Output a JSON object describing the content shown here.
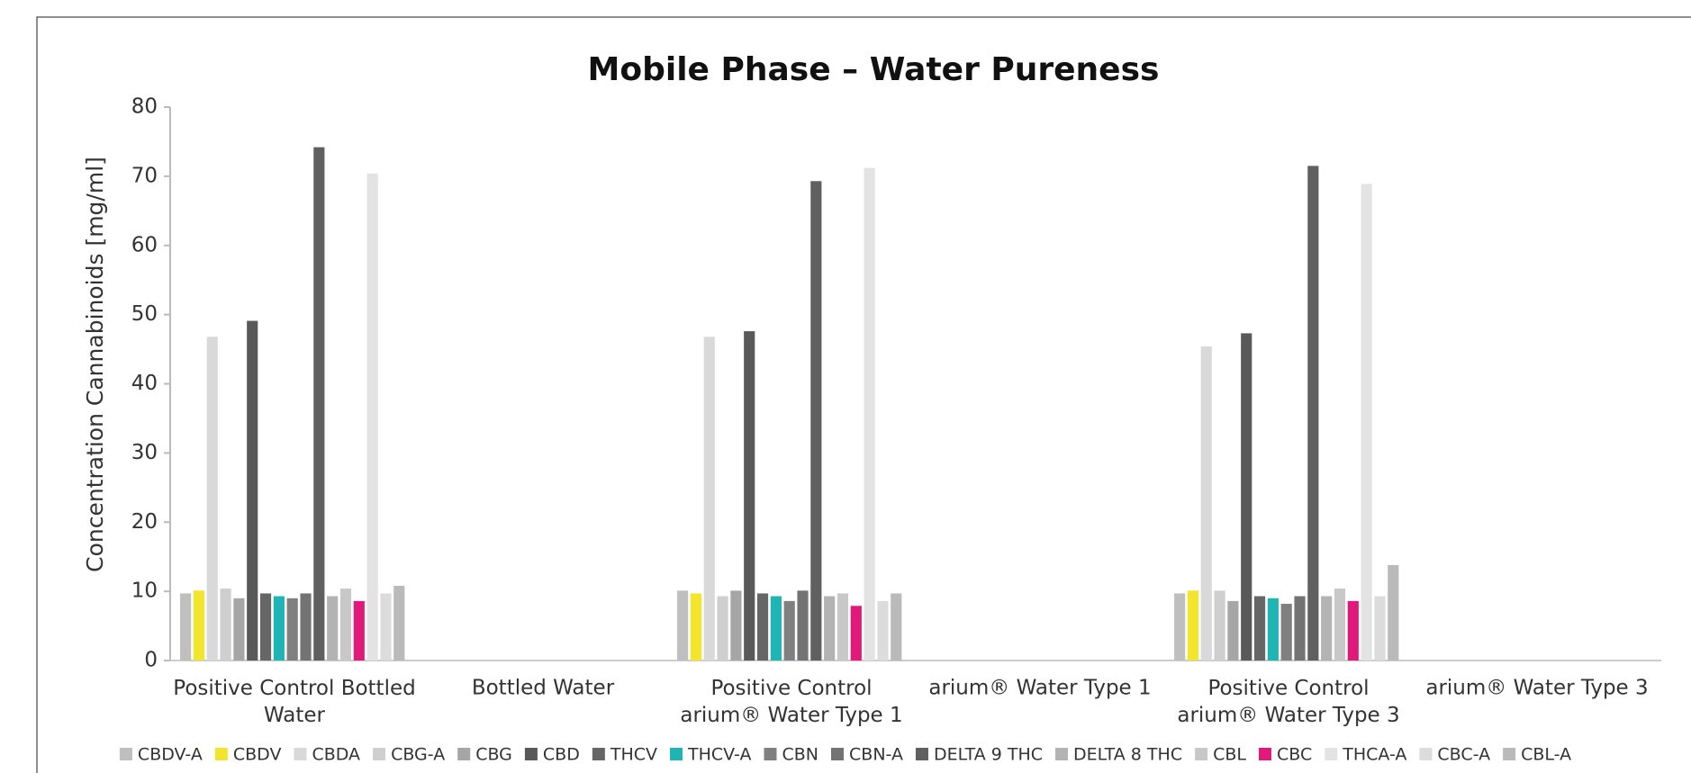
{
  "chart_data": {
    "type": "bar",
    "title": "Mobile Phase – Water Pureness",
    "ylabel": "Concentration Cannabinoids [mg/ml]",
    "categories": [
      "Positive Control Bottled Water",
      "Bottled Water",
      "Positive Control arium® Water Type 1",
      "arium® Water Type 1",
      "Positive Control arium® Water Type 3",
      "arium® Water Type 3"
    ],
    "series": [
      {
        "name": "CBDV-A",
        "color": "#bfbfbf",
        "values": [
          9.7,
          null,
          10.1,
          null,
          9.7,
          null
        ]
      },
      {
        "name": "CBDV",
        "color": "#f2e52a",
        "values": [
          10.1,
          null,
          9.7,
          null,
          10.1,
          null
        ]
      },
      {
        "name": "CBDA",
        "color": "#d9d9d9",
        "values": [
          46.8,
          null,
          46.8,
          null,
          45.4,
          null
        ]
      },
      {
        "name": "CBG-A",
        "color": "#cfcfcf",
        "values": [
          10.4,
          null,
          9.3,
          null,
          10.1,
          null
        ]
      },
      {
        "name": "CBG",
        "color": "#a6a6a6",
        "values": [
          9.0,
          null,
          10.1,
          null,
          8.6,
          null
        ]
      },
      {
        "name": "CBD",
        "color": "#595959",
        "values": [
          49.1,
          null,
          47.6,
          null,
          47.3,
          null
        ]
      },
      {
        "name": "THCV",
        "color": "#666666",
        "values": [
          9.7,
          null,
          9.7,
          null,
          9.3,
          null
        ]
      },
      {
        "name": "THCV-A",
        "color": "#1fb5b5",
        "values": [
          9.3,
          null,
          9.3,
          null,
          9.0,
          null
        ]
      },
      {
        "name": "CBN",
        "color": "#808080",
        "values": [
          9.0,
          null,
          8.6,
          null,
          8.2,
          null
        ]
      },
      {
        "name": "CBN-A",
        "color": "#737373",
        "values": [
          9.7,
          null,
          10.1,
          null,
          9.3,
          null
        ]
      },
      {
        "name": "DELTA 9 THC",
        "color": "#606060",
        "values": [
          74.2,
          null,
          69.3,
          null,
          71.5,
          null
        ]
      },
      {
        "name": "DELTA 8 THC",
        "color": "#b3b3b3",
        "values": [
          9.3,
          null,
          9.3,
          null,
          9.3,
          null
        ]
      },
      {
        "name": "CBL",
        "color": "#c8c8c8",
        "values": [
          10.4,
          null,
          9.7,
          null,
          10.4,
          null
        ]
      },
      {
        "name": "CBC",
        "color": "#e0197a",
        "values": [
          8.6,
          null,
          7.9,
          null,
          8.6,
          null
        ]
      },
      {
        "name": "THCA-A",
        "color": "#e3e3e3",
        "values": [
          70.4,
          null,
          71.2,
          null,
          68.9,
          null
        ]
      },
      {
        "name": "CBC-A",
        "color": "#dcdcdc",
        "values": [
          9.7,
          null,
          8.6,
          null,
          9.3,
          null
        ]
      },
      {
        "name": "CBL-A",
        "color": "#bababa",
        "values": [
          10.8,
          null,
          9.7,
          null,
          13.8,
          null
        ]
      }
    ],
    "ylim": [
      0,
      80
    ],
    "yticks": [
      0,
      10,
      20,
      30,
      40,
      50,
      60,
      70,
      80
    ],
    "grid": false,
    "legend": "bottom"
  }
}
